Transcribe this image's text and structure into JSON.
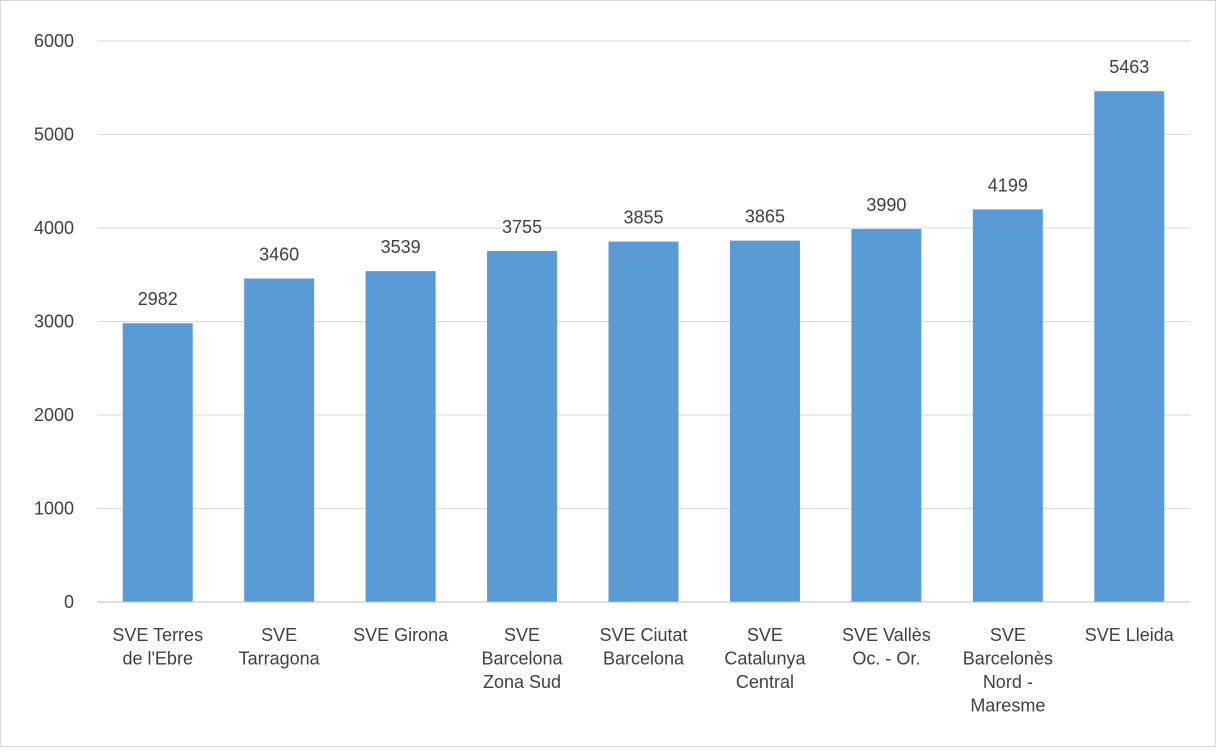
{
  "chart_data": {
    "type": "bar",
    "categories": [
      [
        "SVE Terres",
        "de l'Ebre"
      ],
      [
        "SVE",
        "Tarragona"
      ],
      [
        "SVE Girona"
      ],
      [
        "SVE",
        "Barcelona",
        "Zona Sud"
      ],
      [
        "SVE Ciutat",
        "Barcelona"
      ],
      [
        "SVE",
        "Catalunya",
        "Central"
      ],
      [
        "SVE Vallès",
        "Oc. - Or."
      ],
      [
        "SVE",
        "Barcelonès",
        "Nord -",
        "Maresme"
      ],
      [
        "SVE Lleida"
      ]
    ],
    "values": [
      2982,
      3460,
      3539,
      3755,
      3855,
      3865,
      3990,
      4199,
      5463
    ],
    "data_labels": [
      "2982",
      "3460",
      "3539",
      "3755",
      "3855",
      "3865",
      "3990",
      "4199",
      "5463"
    ],
    "y_ticks": [
      "0",
      "1000",
      "2000",
      "3000",
      "4000",
      "5000",
      "6000"
    ],
    "ylim": [
      0,
      6000
    ],
    "title": "",
    "xlabel": "",
    "ylabel": "",
    "grid": true,
    "legend": "none",
    "colors": {
      "bar": "#5B9BD5",
      "grid": "#D9D9D9",
      "axis": "#BFBFBF",
      "text": "#404040",
      "frame": "#D9D9D9"
    }
  }
}
